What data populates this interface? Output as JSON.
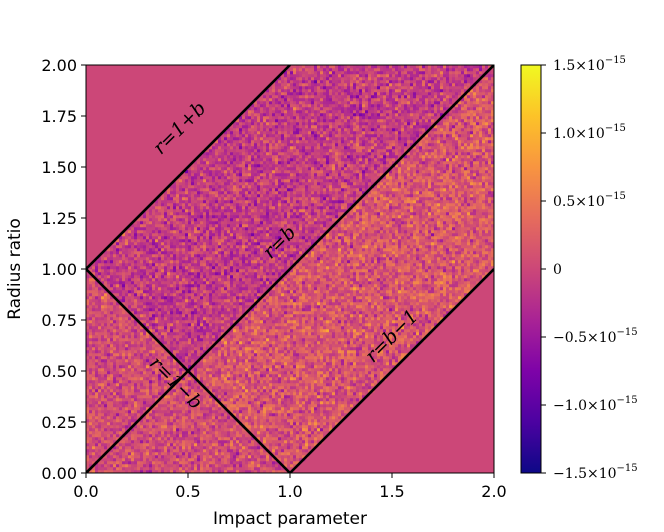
{
  "chart_data": {
    "type": "heatmap",
    "xlabel": "Impact parameter",
    "ylabel": "Radius ratio",
    "xlim": [
      0.0,
      2.0
    ],
    "ylim": [
      0.0,
      2.0
    ],
    "x_ticks": [
      "0.0",
      "0.5",
      "1.0",
      "1.5",
      "2.0"
    ],
    "y_ticks": [
      "0.00",
      "0.25",
      "0.50",
      "0.75",
      "1.00",
      "1.25",
      "1.50",
      "1.75",
      "2.00"
    ],
    "colormap": "plasma",
    "colorbar": {
      "range": [
        -1.5e-15,
        1.5e-15
      ],
      "ticks": [
        {
          "value": 1.5e-15,
          "mant": "1.5",
          "exp": "−15"
        },
        {
          "value": 1e-15,
          "mant": "1.0",
          "exp": "−15"
        },
        {
          "value": 5e-16,
          "mant": "0.5",
          "exp": "−15"
        },
        {
          "value": 0,
          "mant": "0",
          "exp": ""
        },
        {
          "value": -5e-16,
          "mant": "−0.5",
          "exp": "−15"
        },
        {
          "value": -1e-15,
          "mant": "−1.0",
          "exp": "−15"
        },
        {
          "value": -1.5e-15,
          "mant": "−1.5",
          "exp": "−15"
        }
      ]
    },
    "boundary_lines": [
      {
        "label": "r = 1 + b",
        "label_text": "r=1+b",
        "points": [
          [
            0.0,
            1.0
          ],
          [
            1.0,
            2.0
          ]
        ],
        "label_at": [
          0.48,
          1.67
        ]
      },
      {
        "label": "r = b",
        "label_text": "r=b",
        "points": [
          [
            0.0,
            0.0
          ],
          [
            2.0,
            2.0
          ]
        ],
        "label_at": [
          0.97,
          1.11
        ]
      },
      {
        "label": "r = b − 1",
        "label_text": "r=b−1",
        "points": [
          [
            1.0,
            0.0
          ],
          [
            2.0,
            1.0
          ]
        ],
        "label_at": [
          1.52,
          0.65
        ]
      },
      {
        "label": "r = 1 − b",
        "label_text": "r=1−b",
        "points": [
          [
            0.0,
            1.0
          ],
          [
            1.0,
            0.0
          ]
        ],
        "label_at": [
          0.42,
          0.42
        ]
      }
    ],
    "zero_color": "#cc4778"
  }
}
